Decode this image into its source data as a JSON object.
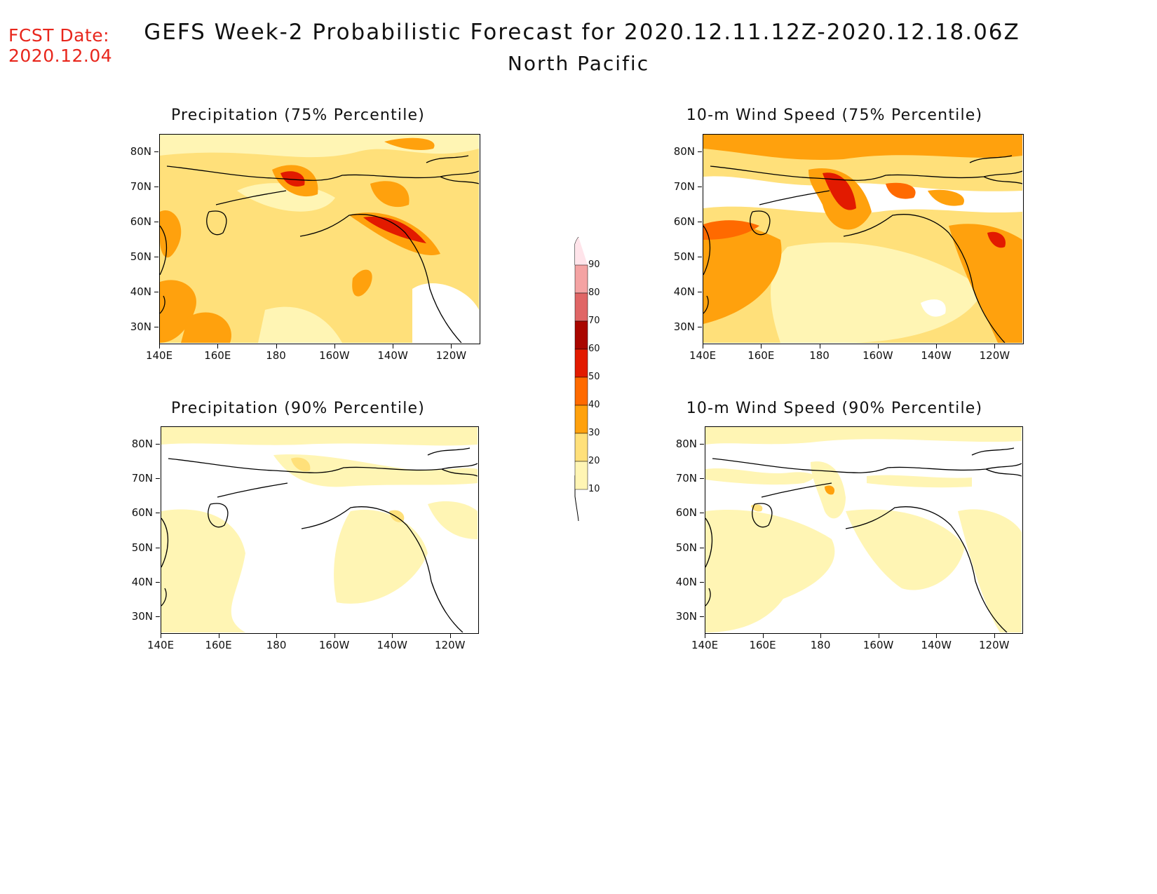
{
  "header": {
    "fcst_label": "FCST Date:",
    "fcst_date": "2020.12.04",
    "title": "GEFS Week-2 Probabilistic Forecast for 2020.12.11.12Z-2020.12.18.06Z",
    "subtitle": "North Pacific"
  },
  "axes": {
    "lat_labels": [
      "80N",
      "70N",
      "60N",
      "50N",
      "40N",
      "30N"
    ],
    "lon_labels": [
      "140E",
      "160E",
      "180",
      "160W",
      "140W",
      "120W"
    ]
  },
  "panels": [
    {
      "id": "precip-75",
      "title": "Precipitation (75% Percentile)"
    },
    {
      "id": "wind-75",
      "title": "10-m Wind Speed (75% Percentile)"
    },
    {
      "id": "precip-90",
      "title": "Precipitation (90% Percentile)"
    },
    {
      "id": "wind-90",
      "title": "10-m Wind Speed (90% Percentile)"
    }
  ],
  "colorbar": {
    "levels": [
      "90",
      "80",
      "70",
      "60",
      "50",
      "40",
      "30",
      "20",
      "10"
    ],
    "colors": {
      "lt10": "#ffffff",
      "10-20": "#fff5b4",
      "20-30": "#ffe07a",
      "30-40": "#ffa10d",
      "40-50": "#ff6a00",
      "50-60": "#e21a00",
      "60-70": "#a90600",
      "70-80": "#e06666",
      "80-90": "#f4a3a3",
      "gt90": "#ffe4ea"
    }
  },
  "colors": {
    "date_text": "#e8261c",
    "coastline": "#000000"
  }
}
